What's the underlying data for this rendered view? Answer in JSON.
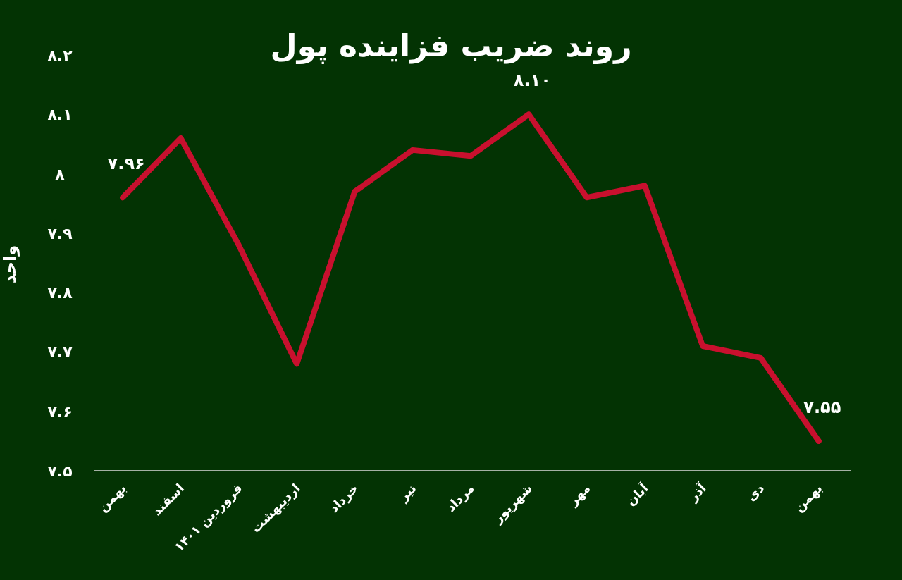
{
  "chart_data": {
    "type": "line",
    "title": "روند ضریب فزاینده پول",
    "ylabel": "واحد",
    "categories": [
      "بهمن",
      "اسفند",
      "فروردین ۱۴۰۱",
      "اردیبهشت",
      "خرداد",
      "تیر",
      "مرداد",
      "شهریور",
      "مهر",
      "آبان",
      "آذر",
      "دی",
      "بهمن"
    ],
    "values": [
      7.96,
      8.06,
      7.88,
      7.68,
      7.97,
      8.04,
      8.03,
      8.1,
      7.96,
      7.98,
      7.71,
      7.69,
      7.55
    ],
    "value_labels": [
      "۷.۹۶",
      null,
      null,
      null,
      null,
      null,
      null,
      "۸.۱۰",
      null,
      null,
      null,
      null,
      "۷.۵۵"
    ],
    "color": "#c8102e",
    "ylim": [
      7.5,
      8.2
    ],
    "yticks": [
      {
        "value": 7.5,
        "label": "۷.۵"
      },
      {
        "value": 7.6,
        "label": "۷.۶"
      },
      {
        "value": 7.7,
        "label": "۷.۷"
      },
      {
        "value": 7.8,
        "label": "۷.۸"
      },
      {
        "value": 7.9,
        "label": "۷.۹"
      },
      {
        "value": 8.0,
        "label": "۸"
      },
      {
        "value": 8.1,
        "label": "۸.۱"
      },
      {
        "value": 8.2,
        "label": "۸.۲"
      }
    ]
  }
}
